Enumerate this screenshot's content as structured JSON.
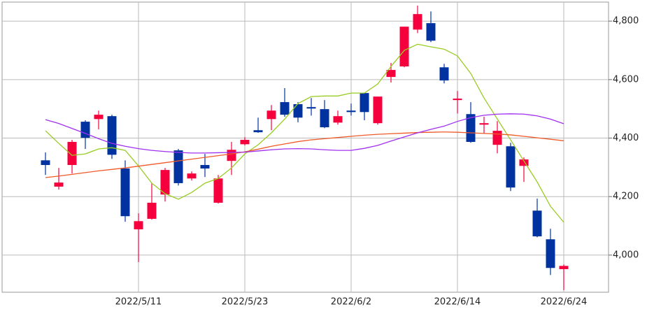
{
  "chart_data": {
    "type": "candlestick",
    "categories": [
      null,
      null,
      null,
      null,
      null,
      null,
      null,
      "2022/5/11",
      null,
      null,
      null,
      null,
      null,
      null,
      null,
      "2022/5/23",
      null,
      null,
      null,
      null,
      null,
      null,
      null,
      "2022/6/2",
      null,
      null,
      null,
      null,
      null,
      null,
      null,
      "2022/6/14",
      null,
      null,
      null,
      null,
      null,
      null,
      null,
      "2022/6/24"
    ],
    "open": [
      4324,
      4234,
      4308,
      4456,
      4465,
      4475,
      4296,
      4088,
      4124,
      4207,
      4358,
      4262,
      4308,
      4179,
      4322,
      4379,
      4427,
      4465,
      4523,
      4516,
      4506,
      4499,
      4453,
      4494,
      4554,
      4451,
      4609,
      4645,
      4771,
      4793,
      4642,
      4530,
      4482,
      4446,
      4377,
      4372,
      4305,
      4152,
      4054,
      3952
    ],
    "high": [
      4351,
      4298,
      4394,
      4461,
      4494,
      4480,
      4324,
      4143,
      4245,
      4298,
      4363,
      4286,
      4346,
      4274,
      4387,
      4403,
      4470,
      4513,
      4571,
      4523,
      4537,
      4530,
      4494,
      4518,
      4554,
      4542,
      4657,
      4781,
      4853,
      4833,
      4654,
      4561,
      4523,
      4473,
      4458,
      4384,
      4334,
      4193,
      4090,
      3968
    ],
    "low": [
      4274,
      4224,
      4279,
      4363,
      4430,
      4329,
      4114,
      3976,
      4121,
      4183,
      4238,
      4255,
      4267,
      4176,
      4274,
      4375,
      4418,
      4427,
      4473,
      4454,
      4477,
      4434,
      4446,
      4477,
      4461,
      4446,
      4590,
      4642,
      4759,
      4728,
      4587,
      4484,
      4384,
      4415,
      4348,
      4219,
      4250,
      4061,
      3932,
      3880
    ],
    "close": [
      4308,
      4248,
      4387,
      4401,
      4480,
      4343,
      4133,
      4116,
      4179,
      4291,
      4246,
      4279,
      4296,
      4262,
      4360,
      4394,
      4420,
      4494,
      4480,
      4470,
      4501,
      4437,
      4475,
      4489,
      4489,
      4542,
      4633,
      4781,
      4824,
      4733,
      4597,
      4535,
      4387,
      4451,
      4425,
      4231,
      4327,
      4064,
      3956,
      3963
    ],
    "up_color": "#f5003d",
    "down_color": "#0033a0",
    "lines": [
      {
        "color": "#99cc22",
        "values": [
          4425,
          4382,
          4341,
          4346,
          4363,
          4367,
          4358,
          4305,
          4246,
          4210,
          4191,
          4214,
          4246,
          4262,
          4298,
          4346,
          4377,
          4418,
          4465,
          4518,
          4542,
          4544,
          4544,
          4554,
          4554,
          4585,
          4645,
          4700,
          4721,
          4712,
          4704,
          4681,
          4621,
          4537,
          4465,
          4394,
          4322,
          4250,
          4167,
          4112
        ]
      },
      {
        "color": "#f05a28",
        "values": [
          4265,
          4270,
          4276,
          4282,
          4288,
          4293,
          4298,
          4304,
          4310,
          4316,
          4322,
          4328,
          4334,
          4340,
          4346,
          4353,
          4362,
          4372,
          4380,
          4388,
          4394,
          4398,
          4402,
          4406,
          4410,
          4413,
          4415,
          4417,
          4419,
          4420,
          4421,
          4420,
          4418,
          4416,
          4414,
          4411,
          4406,
          4401,
          4396,
          4391
        ]
      },
      {
        "color": "#a030f0",
        "values": [
          4463,
          4450,
          4433,
          4416,
          4398,
          4382,
          4372,
          4364,
          4358,
          4354,
          4351,
          4349,
          4349,
          4350,
          4351,
          4352,
          4356,
          4360,
          4363,
          4364,
          4363,
          4360,
          4358,
          4358,
          4365,
          4375,
          4390,
          4404,
          4418,
          4430,
          4441,
          4457,
          4470,
          4478,
          4482,
          4483,
          4482,
          4476,
          4465,
          4449
        ]
      }
    ],
    "ylim": [
      3873,
      4865
    ],
    "yticks": [
      {
        "value": 4000,
        "label": "4,000"
      },
      {
        "value": 4200,
        "label": "4,200"
      },
      {
        "value": 4400,
        "label": "4,400"
      },
      {
        "value": 4600,
        "label": "4,600"
      },
      {
        "value": 4800,
        "label": "4,800"
      }
    ],
    "grid": true
  }
}
